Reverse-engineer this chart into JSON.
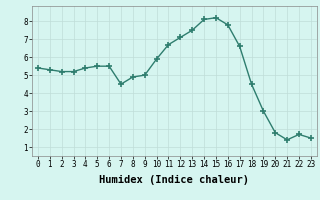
{
  "x": [
    0,
    1,
    2,
    3,
    4,
    5,
    6,
    7,
    8,
    9,
    10,
    11,
    12,
    13,
    14,
    15,
    16,
    17,
    18,
    19,
    20,
    21,
    22,
    23
  ],
  "y": [
    5.4,
    5.3,
    5.2,
    5.2,
    5.4,
    5.5,
    5.5,
    4.5,
    4.9,
    5.0,
    5.9,
    6.7,
    7.1,
    7.5,
    8.1,
    8.2,
    7.8,
    6.6,
    4.5,
    3.0,
    1.8,
    1.4,
    1.7,
    1.5
  ],
  "line_color": "#2e7d6e",
  "marker": "+",
  "marker_size": 4,
  "bg_color": "#d6f5f0",
  "grid_color": "#c0ddd8",
  "xlabel": "Humidex (Indice chaleur)",
  "xlim": [
    -0.5,
    23.5
  ],
  "ylim": [
    0.5,
    8.85
  ],
  "yticks": [
    1,
    2,
    3,
    4,
    5,
    6,
    7,
    8
  ],
  "xticks": [
    0,
    1,
    2,
    3,
    4,
    5,
    6,
    7,
    8,
    9,
    10,
    11,
    12,
    13,
    14,
    15,
    16,
    17,
    18,
    19,
    20,
    21,
    22,
    23
  ],
  "tick_label_fontsize": 5.5,
  "xlabel_fontsize": 7.5,
  "line_width": 1.0,
  "marker_size_pt": 5
}
